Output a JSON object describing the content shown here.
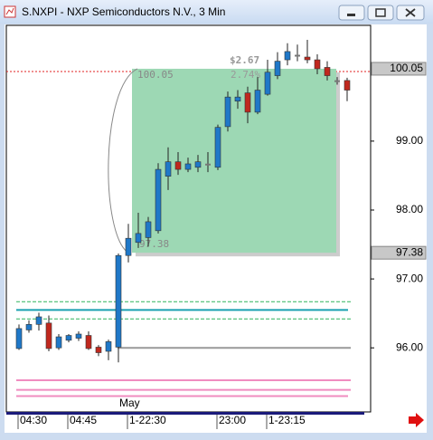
{
  "chart_data": {
    "type": "candlestick",
    "title": "S.NXPI - NXP Semiconductors N.V., 3 Min",
    "categories": [
      "04:30",
      null,
      null,
      null,
      null,
      "04:45",
      null,
      null,
      null,
      null,
      null,
      "1-22:30",
      null,
      null,
      null,
      null,
      null,
      null,
      null,
      null,
      "23:00",
      null,
      null,
      null,
      null,
      "1-23:15",
      null,
      null,
      null,
      null,
      null,
      null,
      null,
      null
    ],
    "open": [
      95.99,
      96.26,
      96.34,
      96.36,
      96.0,
      96.11,
      96.14,
      96.18,
      96.01,
      95.95,
      96.01,
      97.34,
      97.53,
      97.6,
      97.7,
      98.49,
      98.7,
      98.59,
      98.62,
      98.66,
      98.62,
      99.21,
      99.58,
      99.7,
      99.42,
      99.68,
      99.95,
      100.18,
      100.24,
      100.22,
      100.18,
      100.07,
      99.87,
      99.88
    ],
    "high": [
      96.34,
      96.4,
      96.51,
      96.47,
      96.2,
      96.2,
      96.24,
      96.24,
      96.04,
      96.12,
      97.37,
      97.8,
      97.96,
      97.9,
      98.68,
      98.91,
      98.84,
      98.76,
      98.8,
      98.84,
      99.24,
      99.72,
      99.74,
      99.79,
      99.93,
      100.18,
      100.29,
      100.42,
      100.4,
      100.47,
      100.26,
      100.16,
      99.93,
      99.92
    ],
    "low": [
      95.97,
      96.22,
      96.25,
      95.95,
      95.97,
      96.08,
      96.1,
      95.97,
      95.88,
      95.82,
      95.79,
      97.24,
      97.45,
      97.47,
      97.66,
      98.29,
      98.51,
      98.55,
      98.55,
      98.55,
      98.58,
      99.14,
      99.47,
      99.26,
      99.39,
      99.66,
      99.9,
      100.1,
      100.16,
      100.13,
      99.97,
      99.88,
      99.82,
      99.58
    ],
    "close": [
      96.28,
      96.34,
      96.45,
      95.99,
      96.16,
      96.18,
      96.2,
      95.99,
      95.93,
      96.09,
      97.34,
      97.59,
      97.66,
      97.83,
      98.59,
      98.7,
      98.59,
      98.67,
      98.7,
      98.66,
      99.2,
      99.64,
      99.64,
      99.42,
      99.74,
      100.0,
      100.16,
      100.3,
      100.24,
      100.18,
      100.05,
      99.95,
      99.87,
      99.74
    ],
    "up_color": "#1f78c8",
    "down_color": "#c0281e",
    "doji_color": "#777777",
    "ylim": [
      95.07,
      100.68
    ],
    "yticks": [
      {
        "value": 96,
        "label": "96.00"
      },
      {
        "value": 97,
        "label": "97.00"
      },
      {
        "value": 98,
        "label": "98.00"
      },
      {
        "value": 99,
        "label": "99.00"
      }
    ],
    "levels": [
      {
        "value": 96.67,
        "color": "#2fb35a",
        "dashed": true
      },
      {
        "value": 96.55,
        "color": "#1aa0b0",
        "dashed": false
      },
      {
        "value": 96.42,
        "color": "#2fb35a",
        "dashed": true
      },
      {
        "value": 96,
        "color": "#999999",
        "dashed": false
      },
      {
        "value": 95.53,
        "color": "#f08cc0",
        "dashed": false
      },
      {
        "value": 95.39,
        "color": "#f08cc0",
        "dashed": false
      },
      {
        "value": 95.3,
        "color": "#f08cc0",
        "dashed": false
      }
    ],
    "measure": {
      "high": 100.05,
      "low": 97.38,
      "change": "$2.67",
      "change_pct": "2.74%"
    },
    "annotation": "May"
  }
}
